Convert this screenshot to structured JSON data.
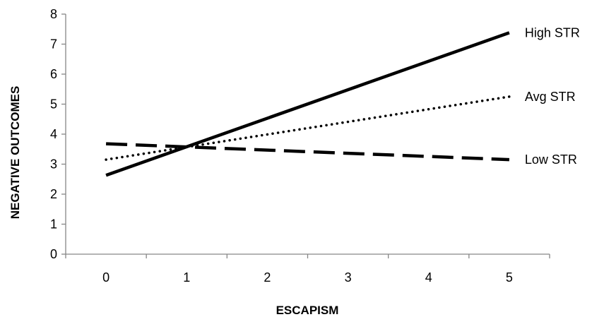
{
  "chart_data": {
    "type": "line",
    "xlabel": "ESCAPISM",
    "ylabel": "NEGATIVE OUTCOMES",
    "xlim": [
      -0.5,
      5.5
    ],
    "ylim": [
      0,
      8
    ],
    "x_ticks": [
      0,
      1,
      2,
      3,
      4,
      5
    ],
    "y_ticks": [
      0,
      1,
      2,
      3,
      4,
      5,
      6,
      7,
      8
    ],
    "grid": false,
    "legend": "inline labels at line ends",
    "series": [
      {
        "name": "High STR",
        "style": "solid",
        "x": [
          0,
          5
        ],
        "y": [
          2.63,
          7.38
        ]
      },
      {
        "name": "Avg STR",
        "style": "dotted",
        "x": [
          0,
          5
        ],
        "y": [
          3.15,
          5.25
        ]
      },
      {
        "name": "Low STR",
        "style": "dashed",
        "x": [
          0,
          5
        ],
        "y": [
          3.68,
          3.15
        ]
      }
    ],
    "colors": {
      "line": "#000000",
      "axis": "#868686"
    }
  }
}
